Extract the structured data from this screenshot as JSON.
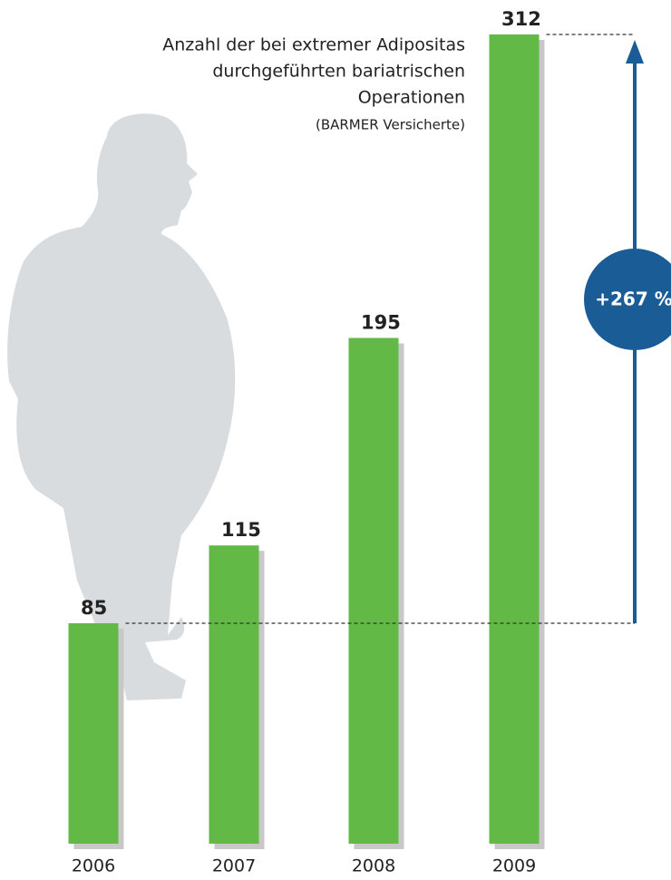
{
  "chart_data": {
    "type": "bar",
    "title": [
      "Anzahl der bei extremer Adipositas",
      "durchgeführten bariatrischen",
      "Operationen"
    ],
    "subtitle": "(BARMER Versicherte)",
    "categories": [
      "2006",
      "2007",
      "2008",
      "2009"
    ],
    "values": [
      85,
      115,
      195,
      312
    ],
    "color": "#62b946",
    "annotation": "+267 %"
  }
}
